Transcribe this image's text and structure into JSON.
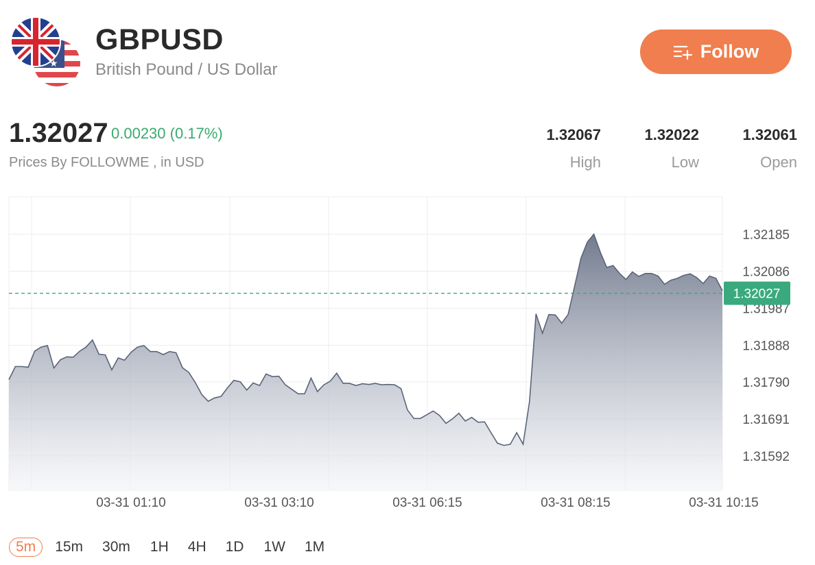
{
  "header": {
    "symbol": "GBPUSD",
    "name": "British Pound / US Dollar",
    "follow_label": "Follow"
  },
  "quote": {
    "price": "1.32027",
    "change": "0.00230 (0.17%)",
    "source": "Prices By FOLLOWME , in USD",
    "stats": [
      {
        "value": "1.32067",
        "label": "High"
      },
      {
        "value": "1.32022",
        "label": "Low"
      },
      {
        "value": "1.32061",
        "label": "Open"
      }
    ]
  },
  "chart_data": {
    "type": "area",
    "y_ticks": [
      1.32185,
      1.32086,
      1.31987,
      1.31888,
      1.3179,
      1.31691,
      1.31592
    ],
    "y_tick_labels": [
      "1.32185",
      "1.32086",
      "1.31987",
      "1.31888",
      "1.31790",
      "1.31691",
      "1.31592"
    ],
    "x_tick_labels": [
      "03-31 01:10",
      "03-31 03:10",
      "03-31 06:15",
      "03-31 08:15",
      "03-31 10:15"
    ],
    "ylim": [
      1.315,
      1.32285
    ],
    "current_price": 1.32027,
    "current_label": "1.32027",
    "values": [
      1.31796,
      1.31831,
      1.31831,
      1.31829,
      1.31872,
      1.31883,
      1.31887,
      1.31827,
      1.31849,
      1.31857,
      1.31856,
      1.31872,
      1.31883,
      1.31902,
      1.31864,
      1.31862,
      1.31822,
      1.31854,
      1.31848,
      1.31869,
      1.31883,
      1.31887,
      1.31871,
      1.31871,
      1.31863,
      1.31871,
      1.31868,
      1.31828,
      1.31815,
      1.31788,
      1.31756,
      1.31738,
      1.31747,
      1.31751,
      1.31774,
      1.31794,
      1.3179,
      1.31768,
      1.31787,
      1.3178,
      1.31811,
      1.31804,
      1.31805,
      1.31782,
      1.3177,
      1.31758,
      1.31758,
      1.318,
      1.31764,
      1.31782,
      1.31792,
      1.31813,
      1.31786,
      1.31786,
      1.3178,
      1.31785,
      1.31783,
      1.31786,
      1.31782,
      1.31783,
      1.31782,
      1.31772,
      1.31715,
      1.31692,
      1.31692,
      1.31702,
      1.31712,
      1.317,
      1.31679,
      1.31691,
      1.31706,
      1.31685,
      1.31695,
      1.31682,
      1.31683,
      1.31654,
      1.31626,
      1.3162,
      1.31623,
      1.31654,
      1.31623,
      1.31738,
      1.31972,
      1.3192,
      1.3197,
      1.31969,
      1.31947,
      1.3197,
      1.32045,
      1.32121,
      1.32164,
      1.32185,
      1.32137,
      1.32096,
      1.32101,
      1.3208,
      1.32064,
      1.32084,
      1.32072,
      1.3208,
      1.3208,
      1.32073,
      1.32051,
      1.32062,
      1.32067,
      1.32075,
      1.32079,
      1.32069,
      1.32053,
      1.32073,
      1.32067,
      1.32034
    ]
  },
  "timeframes": [
    "5m",
    "15m",
    "30m",
    "1H",
    "4H",
    "1D",
    "1W",
    "1M"
  ],
  "active_timeframe": "5m",
  "colors": {
    "accent": "#f07e4e",
    "up": "#3aaa6e",
    "line": "#5a6478",
    "area": "#7d8698",
    "label_bg": "#3aaa7e"
  },
  "icons": [
    "uk-flag-icon",
    "us-flag-icon",
    "follow-list-plus-icon"
  ]
}
